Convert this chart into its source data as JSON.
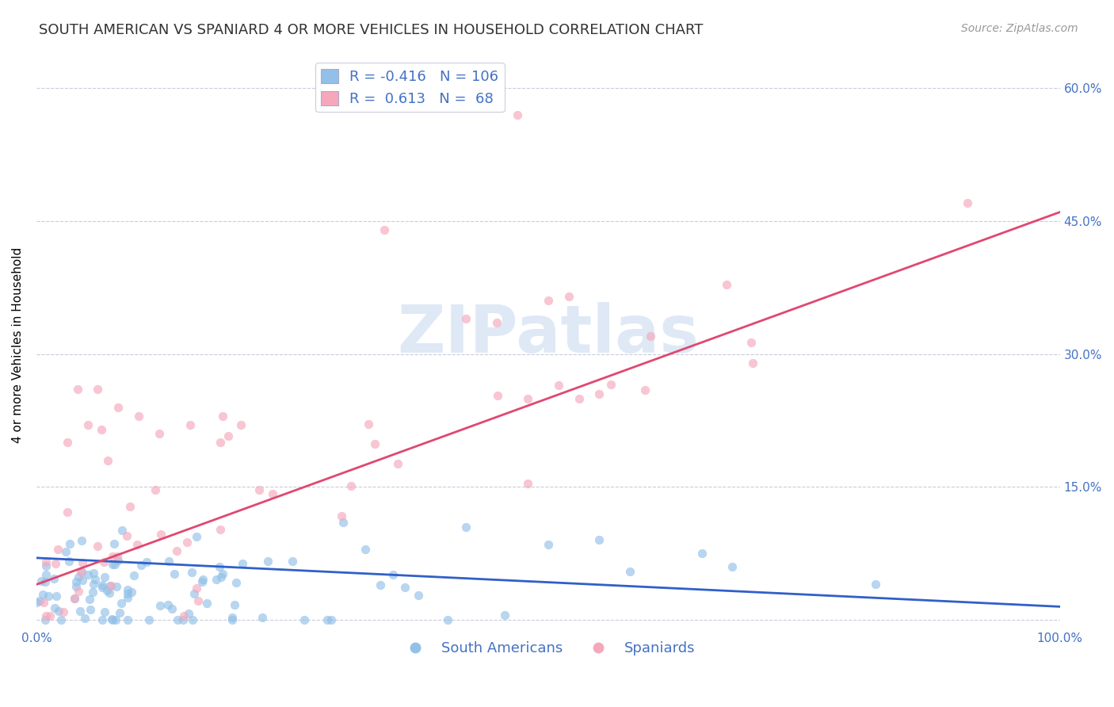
{
  "title": "SOUTH AMERICAN VS SPANIARD 4 OR MORE VEHICLES IN HOUSEHOLD CORRELATION CHART",
  "source": "Source: ZipAtlas.com",
  "ylabel": "4 or more Vehicles in Household",
  "xlim": [
    0,
    100
  ],
  "ylim": [
    -1,
    63
  ],
  "yticks": [
    0,
    15,
    30,
    45,
    60
  ],
  "xticks": [
    0,
    100
  ],
  "xtick_labels": [
    "0.0%",
    "100.0%"
  ],
  "blue_color": "#92C0E8",
  "pink_color": "#F5A8BC",
  "blue_line_color": "#3060C8",
  "pink_line_color": "#E04870",
  "axis_tick_color": "#4472C4",
  "grid_color": "#CBCBDD",
  "watermark": "ZIPatlas",
  "legend_R_blue": "R = -0.416",
  "legend_N_blue": "N = 106",
  "legend_R_pink": "R =  0.613",
  "legend_N_pink": "N =  68",
  "blue_N": 106,
  "pink_N": 68,
  "blue_line_x0": 0,
  "blue_line_y0": 7.0,
  "blue_line_x1": 100,
  "blue_line_y1": 1.5,
  "pink_line_x0": 0,
  "pink_line_y0": 4.0,
  "pink_line_x1": 100,
  "pink_line_y1": 46.0,
  "title_fontsize": 13,
  "source_fontsize": 10,
  "ylabel_fontsize": 11,
  "tick_fontsize": 11,
  "legend_fontsize": 13,
  "watermark_fontsize": 60
}
